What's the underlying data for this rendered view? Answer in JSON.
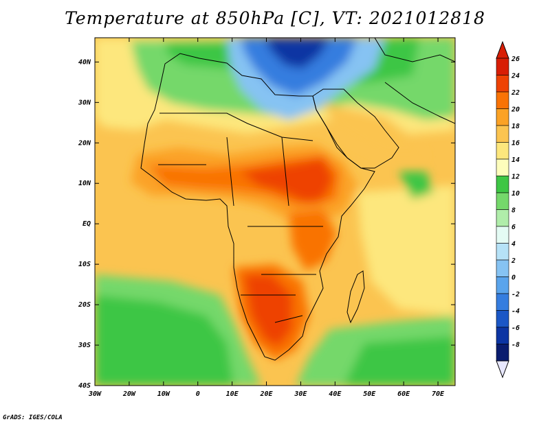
{
  "title": "Temperature at 850hPa [C], VT: 2021012818",
  "footer": "GrADS: IGES/COLA",
  "map": {
    "lon_range": [
      -30,
      75
    ],
    "lat_range": [
      -40,
      46
    ],
    "lat_ticks": [
      {
        "value": 40,
        "label": "40N"
      },
      {
        "value": 30,
        "label": "30N"
      },
      {
        "value": 20,
        "label": "20N"
      },
      {
        "value": 10,
        "label": "10N"
      },
      {
        "value": 0,
        "label": "EQ"
      },
      {
        "value": -10,
        "label": "10S"
      },
      {
        "value": -20,
        "label": "20S"
      },
      {
        "value": -30,
        "label": "30S"
      },
      {
        "value": -40,
        "label": "40S"
      }
    ],
    "lon_ticks": [
      {
        "value": -30,
        "label": "30W"
      },
      {
        "value": -20,
        "label": "20W"
      },
      {
        "value": -10,
        "label": "10W"
      },
      {
        "value": 0,
        "label": "0"
      },
      {
        "value": 10,
        "label": "10E"
      },
      {
        "value": 20,
        "label": "20E"
      },
      {
        "value": 30,
        "label": "30E"
      },
      {
        "value": 40,
        "label": "40E"
      },
      {
        "value": 50,
        "label": "50E"
      },
      {
        "value": 60,
        "label": "60E"
      },
      {
        "value": 70,
        "label": "70E"
      }
    ]
  },
  "colorbar": {
    "labels": [
      "26",
      "24",
      "22",
      "20",
      "18",
      "16",
      "14",
      "12",
      "10",
      "8",
      "6",
      "4",
      "2",
      "0",
      "-2",
      "-4",
      "-6",
      "-8"
    ],
    "colors": [
      "#d81e05",
      "#ee4204",
      "#f97305",
      "#fba225",
      "#fbc450",
      "#fde77d",
      "#fdfdbc",
      "#3ec645",
      "#75d86b",
      "#b0edaa",
      "#e4fbf4",
      "#b6e2f7",
      "#86c3f3",
      "#5aa4ec",
      "#357ddf",
      "#1b57c6",
      "#0c35a3",
      "#0a1d6f"
    ],
    "top_color": "#d81e05",
    "bottom_color": "#e8e8ff"
  }
}
